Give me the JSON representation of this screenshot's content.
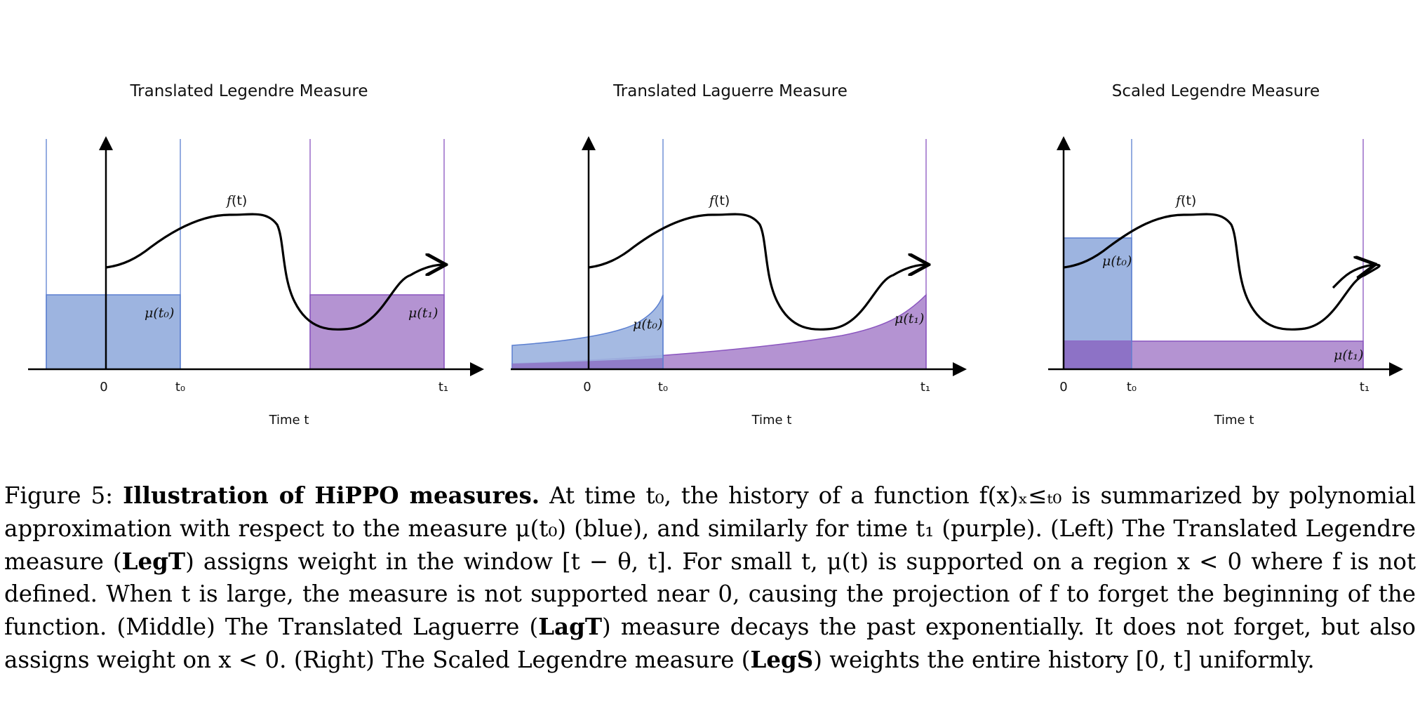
{
  "panels": [
    {
      "title": "Translated Legendre Measure",
      "f_label": "f",
      "f_arg": "(t)",
      "mu0_label": "μ(t₀)",
      "mu1_label": "μ(t₁)",
      "ticks": [
        "0",
        "t₀",
        "t₁"
      ],
      "xlabel": "Time t"
    },
    {
      "title": "Translated Laguerre Measure",
      "f_label": "f",
      "f_arg": "(t)",
      "mu0_label": "μ(t₀)",
      "mu1_label": "μ(t₁)",
      "ticks": [
        "0",
        "t₀",
        "t₁"
      ],
      "xlabel": "Time t"
    },
    {
      "title": "Scaled Legendre Measure",
      "f_label": "f",
      "f_arg": "(t)",
      "mu0_label": "μ(t₀)",
      "mu1_label": "μ(t₁)",
      "ticks": [
        "0",
        "t₀",
        "t₁"
      ],
      "xlabel": "Time t"
    }
  ],
  "colors": {
    "blue_fill": "#9db4e0",
    "blue_line": "#5b7fd0",
    "purple_fill": "#b493d2",
    "purple_line": "#8a55bf",
    "overlap_fill": "#8d72c6"
  },
  "caption": {
    "figure_label": "Figure 5:",
    "heading": "Illustration of HiPPO measures.",
    "s1": "At time t₀, the history of a function f(x)ₓ≤ₜ₀ is summarized by polynomial approximation with respect to the measure μ(t₀) (blue), and similarly for time t₁ (purple).",
    "s2": "(Left) The Translated Legendre measure (",
    "legt": "LegT",
    "s3": ") assigns weight in the window [t − θ, t]. For small t, μ(t) is supported on a region x < 0 where f is not defined. When t is large, the measure is not supported near 0, causing the projection of f to forget the beginning of the function. (Middle) The Translated Laguerre (",
    "lagt": "LagT",
    "s4": ") measure decays the past exponentially. It does not forget, but also assigns weight on x < 0. (Right) The Scaled Legendre measure (",
    "legs": "LegS",
    "s5": ") weights the entire history [0, t] uniformly."
  }
}
